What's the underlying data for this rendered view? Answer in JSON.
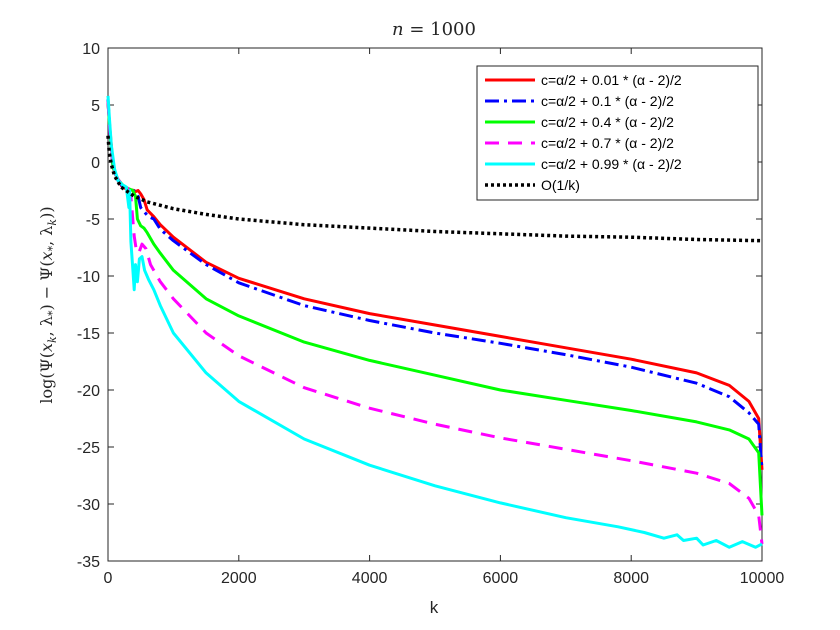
{
  "chart_data": {
    "type": "line",
    "title": "n = 1000",
    "title_italic_var": "n",
    "title_rest": " = 1000",
    "xlabel": "k",
    "ylabel": "log(Ψ(x_k, λ_*) − Ψ(x_*, λ_k))",
    "ylabel_parts": {
      "a": "log",
      "b": "(Ψ(",
      "c": "x",
      "d": "k",
      "e": ", λ",
      "f": "*",
      "g": ") − Ψ(",
      "h": "x",
      "i": "*",
      "j": ", λ",
      "k": "k",
      "l": "))"
    },
    "xlim": [
      0,
      10000
    ],
    "ylim": [
      -35,
      10
    ],
    "xticks": [
      0,
      2000,
      4000,
      6000,
      8000,
      10000
    ],
    "yticks": [
      10,
      5,
      0,
      -5,
      -10,
      -15,
      -20,
      -25,
      -30,
      -35
    ],
    "legend_position": "top-right",
    "series": [
      {
        "name": "c=α/2 + 0.01 * (α - 2)/2",
        "color": "#ff0000",
        "style": "solid",
        "points": [
          [
            0,
            5.2
          ],
          [
            30,
            2.8
          ],
          [
            80,
            -0.5
          ],
          [
            150,
            -1.6
          ],
          [
            220,
            -2.2
          ],
          [
            300,
            -2.4
          ],
          [
            400,
            -2.5
          ],
          [
            420,
            -2.6
          ],
          [
            460,
            -2.5
          ],
          [
            500,
            -2.8
          ],
          [
            550,
            -3.3
          ],
          [
            600,
            -4.2
          ],
          [
            700,
            -4.8
          ],
          [
            800,
            -5.5
          ],
          [
            1000,
            -6.6
          ],
          [
            1500,
            -8.8
          ],
          [
            2000,
            -10.2
          ],
          [
            3000,
            -12.0
          ],
          [
            4000,
            -13.3
          ],
          [
            5000,
            -14.3
          ],
          [
            6000,
            -15.3
          ],
          [
            7000,
            -16.3
          ],
          [
            8000,
            -17.3
          ],
          [
            9000,
            -18.5
          ],
          [
            9500,
            -19.6
          ],
          [
            9800,
            -21.0
          ],
          [
            9950,
            -22.5
          ],
          [
            10000,
            -27.0
          ]
        ]
      },
      {
        "name": "c=α/2 + 0.1 * (α - 2)/2",
        "color": "#0000ff",
        "style": "dashdot",
        "points": [
          [
            0,
            5.5
          ],
          [
            30,
            2.5
          ],
          [
            80,
            -0.6
          ],
          [
            150,
            -1.6
          ],
          [
            220,
            -2.1
          ],
          [
            300,
            -2.3
          ],
          [
            380,
            -2.5
          ],
          [
            420,
            -2.6
          ],
          [
            460,
            -3.0
          ],
          [
            500,
            -4.0
          ],
          [
            560,
            -4.4
          ],
          [
            620,
            -4.8
          ],
          [
            700,
            -5.0
          ],
          [
            800,
            -5.9
          ],
          [
            1000,
            -6.9
          ],
          [
            1500,
            -9.0
          ],
          [
            2000,
            -10.6
          ],
          [
            3000,
            -12.6
          ],
          [
            4000,
            -13.9
          ],
          [
            5000,
            -15.0
          ],
          [
            6000,
            -15.9
          ],
          [
            7000,
            -16.9
          ],
          [
            8000,
            -18.0
          ],
          [
            9000,
            -19.4
          ],
          [
            9500,
            -20.6
          ],
          [
            9800,
            -22.0
          ],
          [
            9950,
            -23.0
          ],
          [
            10000,
            -27.0
          ]
        ]
      },
      {
        "name": "c=α/2 + 0.4 * (α - 2)/2",
        "color": "#00ff00",
        "style": "solid",
        "points": [
          [
            0,
            5.3
          ],
          [
            30,
            2.5
          ],
          [
            80,
            -0.5
          ],
          [
            150,
            -1.5
          ],
          [
            220,
            -2.0
          ],
          [
            300,
            -2.3
          ],
          [
            380,
            -2.5
          ],
          [
            420,
            -3.0
          ],
          [
            450,
            -5.0
          ],
          [
            500,
            -5.6
          ],
          [
            550,
            -5.8
          ],
          [
            600,
            -6.2
          ],
          [
            700,
            -7.2
          ],
          [
            800,
            -8.0
          ],
          [
            1000,
            -9.5
          ],
          [
            1500,
            -12.0
          ],
          [
            2000,
            -13.5
          ],
          [
            3000,
            -15.8
          ],
          [
            4000,
            -17.4
          ],
          [
            5000,
            -18.7
          ],
          [
            6000,
            -20.0
          ],
          [
            7000,
            -20.9
          ],
          [
            8000,
            -21.8
          ],
          [
            9000,
            -22.8
          ],
          [
            9500,
            -23.5
          ],
          [
            9800,
            -24.3
          ],
          [
            9950,
            -25.5
          ],
          [
            10000,
            -31.0
          ]
        ]
      },
      {
        "name": "c=α/2 + 0.7 * (α - 2)/2",
        "color": "#ff00ff",
        "style": "dashed",
        "points": [
          [
            0,
            5.3
          ],
          [
            30,
            2.5
          ],
          [
            80,
            -0.5
          ],
          [
            150,
            -1.5
          ],
          [
            220,
            -2.0
          ],
          [
            300,
            -2.3
          ],
          [
            350,
            -3.0
          ],
          [
            400,
            -6.5
          ],
          [
            430,
            -7.6
          ],
          [
            470,
            -8.0
          ],
          [
            520,
            -7.2
          ],
          [
            580,
            -7.6
          ],
          [
            650,
            -9.0
          ],
          [
            800,
            -10.5
          ],
          [
            1000,
            -12.0
          ],
          [
            1500,
            -15.0
          ],
          [
            2000,
            -17.0
          ],
          [
            3000,
            -19.8
          ],
          [
            4000,
            -21.6
          ],
          [
            5000,
            -23.0
          ],
          [
            6000,
            -24.2
          ],
          [
            7000,
            -25.2
          ],
          [
            8000,
            -26.2
          ],
          [
            9000,
            -27.3
          ],
          [
            9500,
            -28.2
          ],
          [
            9800,
            -29.5
          ],
          [
            9950,
            -31.0
          ],
          [
            10000,
            -33.5
          ]
        ]
      },
      {
        "name": "c=α/2 + 0.99 * (α - 2)/2",
        "color": "#00ffff",
        "style": "solid",
        "points": [
          [
            0,
            5.8
          ],
          [
            20,
            4.0
          ],
          [
            50,
            1.5
          ],
          [
            100,
            -0.6
          ],
          [
            150,
            -1.6
          ],
          [
            220,
            -2.0
          ],
          [
            280,
            -2.2
          ],
          [
            320,
            -4.0
          ],
          [
            330,
            -2.5
          ],
          [
            350,
            -7.0
          ],
          [
            380,
            -9.5
          ],
          [
            400,
            -11.2
          ],
          [
            420,
            -9.0
          ],
          [
            450,
            -10.5
          ],
          [
            480,
            -8.5
          ],
          [
            520,
            -8.3
          ],
          [
            560,
            -9.5
          ],
          [
            620,
            -10.3
          ],
          [
            700,
            -11.2
          ],
          [
            800,
            -12.6
          ],
          [
            1000,
            -15.0
          ],
          [
            1500,
            -18.5
          ],
          [
            2000,
            -21.0
          ],
          [
            3000,
            -24.3
          ],
          [
            4000,
            -26.6
          ],
          [
            5000,
            -28.4
          ],
          [
            6000,
            -29.9
          ],
          [
            7000,
            -31.2
          ],
          [
            7800,
            -32.0
          ],
          [
            8200,
            -32.5
          ],
          [
            8500,
            -33.0
          ],
          [
            8700,
            -32.7
          ],
          [
            8800,
            -33.2
          ],
          [
            9000,
            -33.0
          ],
          [
            9100,
            -33.6
          ],
          [
            9300,
            -33.2
          ],
          [
            9500,
            -33.8
          ],
          [
            9700,
            -33.3
          ],
          [
            9900,
            -33.8
          ],
          [
            10000,
            -33.5
          ]
        ]
      },
      {
        "name": "O(1/k)",
        "color": "#000000",
        "style": "dotted",
        "points": [
          [
            0,
            2.3
          ],
          [
            20,
            0.8
          ],
          [
            50,
            -0.2
          ],
          [
            100,
            -1.2
          ],
          [
            200,
            -2.2
          ],
          [
            400,
            -3.0
          ],
          [
            600,
            -3.5
          ],
          [
            800,
            -3.8
          ],
          [
            1000,
            -4.1
          ],
          [
            1500,
            -4.6
          ],
          [
            2000,
            -5.0
          ],
          [
            3000,
            -5.5
          ],
          [
            4000,
            -5.8
          ],
          [
            5000,
            -6.1
          ],
          [
            6000,
            -6.3
          ],
          [
            7000,
            -6.5
          ],
          [
            8000,
            -6.6
          ],
          [
            9000,
            -6.8
          ],
          [
            10000,
            -6.9
          ]
        ]
      }
    ]
  }
}
